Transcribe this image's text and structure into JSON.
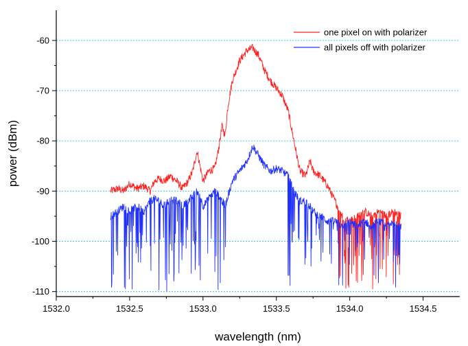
{
  "chart_data": {
    "type": "line",
    "title": "",
    "xlabel": "wavelength (nm)",
    "ylabel": "power (dBm)",
    "xlim": [
      1532.0,
      1534.75
    ],
    "ylim": [
      -111,
      -54
    ],
    "xticks": [
      1532.0,
      1532.5,
      1533.0,
      1533.5,
      1534.0,
      1534.5
    ],
    "xtick_labels": [
      "1532.0",
      "1532.5",
      "1533.0",
      "1533.5",
      "1534.0",
      "1534.5"
    ],
    "yticks": [
      -110,
      -100,
      -90,
      -80,
      -70,
      -60
    ],
    "ytick_labels": [
      "-110",
      "-100",
      "-90",
      "-80",
      "-70",
      "-60"
    ],
    "grid": {
      "horizontal": true,
      "vertical": false,
      "color": "#33ccdd",
      "style": "dotted"
    },
    "legend_position": "top-right",
    "series": [
      {
        "name": "one pixel on with polarizer",
        "color": "#ff2020",
        "x": [
          1532.37,
          1532.42,
          1532.46,
          1532.5,
          1532.55,
          1532.6,
          1532.64,
          1532.67,
          1532.7,
          1532.74,
          1532.78,
          1532.82,
          1532.86,
          1532.9,
          1532.93,
          1532.96,
          1532.98,
          1533.0,
          1533.04,
          1533.08,
          1533.11,
          1533.13,
          1533.15,
          1533.17,
          1533.2,
          1533.25,
          1533.3,
          1533.34,
          1533.38,
          1533.42,
          1533.46,
          1533.5,
          1533.54,
          1533.58,
          1533.62,
          1533.66,
          1533.7,
          1533.73,
          1533.75,
          1533.8,
          1533.85,
          1533.9,
          1533.95,
          1534.0,
          1534.05,
          1534.1,
          1534.15,
          1534.2,
          1534.25,
          1534.3,
          1534.35
        ],
        "y": [
          -90,
          -89.5,
          -90,
          -88.5,
          -89.5,
          -89,
          -90,
          -88,
          -87.5,
          -88,
          -87,
          -88,
          -89.5,
          -88,
          -86,
          -82,
          -85,
          -88,
          -86,
          -85.5,
          -81,
          -77,
          -79,
          -73,
          -68,
          -64,
          -62,
          -61.5,
          -63,
          -66,
          -68,
          -69.5,
          -71,
          -74,
          -80,
          -86,
          -87,
          -84,
          -86,
          -87,
          -89,
          -92,
          -95,
          -96,
          -95,
          -94,
          -95,
          -94,
          -95,
          -94,
          -95
        ]
      },
      {
        "name": "all pixels off with polarizer",
        "color": "#2030ff",
        "x": [
          1532.37,
          1532.42,
          1532.46,
          1532.5,
          1532.55,
          1532.6,
          1532.64,
          1532.67,
          1532.7,
          1532.74,
          1532.78,
          1532.82,
          1532.86,
          1532.9,
          1532.93,
          1532.96,
          1532.98,
          1533.0,
          1533.04,
          1533.08,
          1533.11,
          1533.13,
          1533.15,
          1533.17,
          1533.2,
          1533.25,
          1533.3,
          1533.34,
          1533.38,
          1533.42,
          1533.46,
          1533.5,
          1533.54,
          1533.58,
          1533.62,
          1533.66,
          1533.7,
          1533.73,
          1533.75,
          1533.8,
          1533.85,
          1533.9,
          1533.95,
          1534.0,
          1534.05,
          1534.1,
          1534.15,
          1534.2,
          1534.25,
          1534.3,
          1534.35
        ],
        "y": [
          -95,
          -94,
          -93,
          -94,
          -93,
          -94,
          -92,
          -91.5,
          -92,
          -93,
          -91.5,
          -92,
          -93,
          -92,
          -91,
          -90,
          -91,
          -93,
          -91.5,
          -90,
          -91,
          -92,
          -93,
          -91,
          -88,
          -86,
          -84,
          -81,
          -83,
          -85,
          -86,
          -85.5,
          -86,
          -87,
          -90,
          -92,
          -92,
          -93,
          -94,
          -95,
          -96,
          -96,
          -97,
          -96,
          -97,
          -96,
          -97,
          -96,
          -97,
          -96,
          -97
        ]
      }
    ]
  }
}
